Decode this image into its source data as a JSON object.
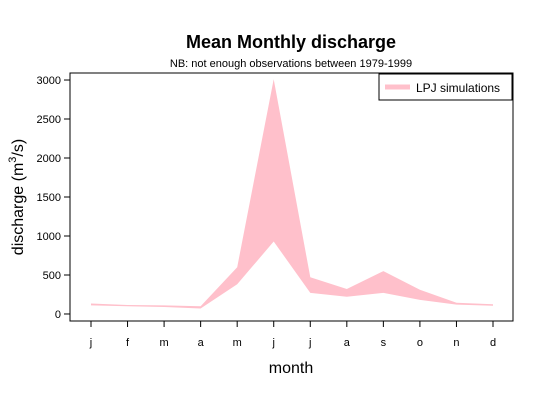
{
  "chart_data": {
    "type": "area",
    "title": "Mean Monthly discharge",
    "subtitle": "NB: not enough observations between 1979-1999",
    "xlabel": "month",
    "ylabel_main": "discharge (m",
    "ylabel_sup": "3",
    "ylabel_tail": "/s)",
    "categories": [
      "j",
      "f",
      "m",
      "a",
      "m",
      "j",
      "j",
      "a",
      "s",
      "o",
      "n",
      "d"
    ],
    "y_ticks": [
      0,
      500,
      1000,
      1500,
      2000,
      2500,
      3000
    ],
    "ylim": [
      -90,
      3090
    ],
    "grid": false,
    "legend_position": "top-right",
    "series": [
      {
        "name": "LPJ simulations",
        "color": "#FFC0CB",
        "lower": [
          110,
          100,
          90,
          70,
          380,
          930,
          270,
          220,
          270,
          180,
          120,
          105
        ],
        "upper": [
          135,
          115,
          110,
          100,
          600,
          3010,
          470,
          320,
          550,
          310,
          145,
          125
        ]
      }
    ]
  }
}
